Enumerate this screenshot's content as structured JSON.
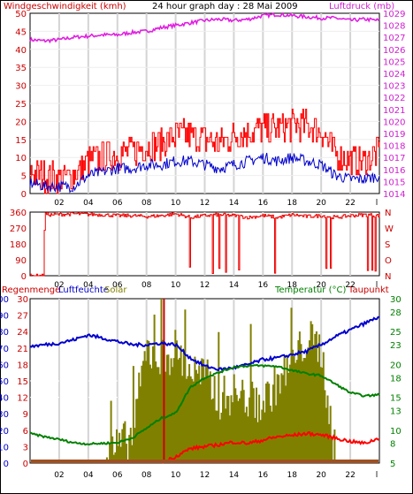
{
  "header": {
    "left_label": "Windgeschwindigkeit (kmh)",
    "title": "24 hour graph day : 28 Mai 2009",
    "right_label": "Luftdruck (mb)"
  },
  "colors": {
    "wind_gust": "#ff0000",
    "wind_avg": "#0000cc",
    "pressure": "#e020e0",
    "direction": "#ee0000",
    "rain": "#cc0000",
    "humidity": "#0000cc",
    "solar": "#808000",
    "temperature": "#008000",
    "dewpoint": "#ff0000",
    "hour_gridline": "#d4d4d4",
    "bottom_bar": "#a05020"
  },
  "legend_mid": {
    "rain": "Regenmenge",
    "humidity": "Luftfeuchte",
    "solar": "Solar",
    "temperature": "Temperatur (°C)",
    "dewpoint": "Taupunkt"
  },
  "chart_data": [
    {
      "type": "line",
      "panel": "wind-pressure",
      "x_ticks": [
        "02",
        "04",
        "06",
        "08",
        "10",
        "12",
        "14",
        "16",
        "18",
        "20",
        "22",
        "l"
      ],
      "left_axis": {
        "label": "Windgeschwindigkeit (kmh)",
        "ticks": [
          0,
          5,
          10,
          15,
          20,
          25,
          30,
          35,
          40,
          45,
          50
        ],
        "ylim": [
          0,
          50
        ]
      },
      "right_axis": {
        "label": "Luftdruck (mb)",
        "ticks": [
          1014,
          1015,
          1016,
          1017,
          1018,
          1019,
          1020,
          1021,
          1022,
          1023,
          1024,
          1025,
          1026,
          1027,
          1028,
          1029
        ],
        "ylim": [
          1014,
          1029
        ]
      },
      "x_hours": [
        0,
        1,
        2,
        3,
        4,
        5,
        6,
        7,
        8,
        9,
        10,
        11,
        12,
        13,
        14,
        15,
        16,
        17,
        18,
        19,
        20,
        21,
        22,
        23,
        24
      ],
      "series": [
        {
          "axis": "right",
          "values": [
            1026.8,
            1026.7,
            1026.8,
            1027.0,
            1027.1,
            1027.2,
            1027.2,
            1027.4,
            1027.5,
            1027.8,
            1028.0,
            1028.2,
            1028.4,
            1028.5,
            1028.4,
            1028.5,
            1028.8,
            1028.9,
            1028.8,
            1028.7,
            1028.6,
            1028.6,
            1028.4,
            1028.5,
            1028.4
          ]
        },
        {
          "axis": "left",
          "values": [
            6,
            5,
            4,
            5,
            9,
            10,
            11,
            12,
            13,
            14,
            16,
            16,
            15,
            14,
            16,
            17,
            18,
            18,
            19,
            19,
            17,
            11,
            9,
            9,
            12
          ]
        },
        {
          "axis": "left",
          "values": [
            3,
            2,
            2,
            2,
            5,
            6,
            7,
            7,
            8,
            8,
            9,
            9,
            8,
            7,
            8,
            9,
            10,
            9,
            10,
            9,
            8,
            5,
            4,
            4,
            5
          ]
        }
      ]
    },
    {
      "type": "line",
      "panel": "wind-direction",
      "x_ticks": [
        "02",
        "04",
        "06",
        "08",
        "10",
        "12",
        "14",
        "16",
        "18",
        "20",
        "22",
        "l"
      ],
      "left_axis": {
        "ticks": [
          0,
          90,
          180,
          270,
          360
        ],
        "ylim": [
          0,
          360
        ]
      },
      "right_axis": {
        "ticks": [
          "N",
          "W",
          "S",
          "O",
          "N"
        ]
      },
      "x_hours": [
        0,
        0.9,
        1.0,
        1.4,
        3,
        5,
        6,
        7,
        8,
        9,
        10,
        11,
        12,
        13,
        14,
        15,
        16,
        17,
        18,
        19,
        20,
        21,
        22,
        23,
        24
      ],
      "series": [
        {
          "values": [
            0,
            0,
            350,
            345,
            350,
            345,
            340,
            340,
            335,
            340,
            350,
            330,
            340,
            345,
            340,
            330,
            340,
            330,
            345,
            335,
            340,
            330,
            340,
            345,
            340
          ]
        }
      ]
    },
    {
      "type": "line",
      "panel": "weather",
      "x_ticks": [
        "02",
        "04",
        "06",
        "08",
        "10",
        "12",
        "14",
        "16",
        "18",
        "20",
        "22",
        "l"
      ],
      "axes": {
        "humidity": {
          "label": "Luftfeuchte",
          "ticks": [
            0,
            10,
            20,
            30,
            40,
            50,
            60,
            70,
            80,
            90,
            100
          ],
          "ylim": [
            0,
            100
          ]
        },
        "solar": {
          "label": "Solar",
          "ticks": [
            0,
            3,
            6,
            9,
            12,
            15,
            18,
            21,
            24,
            27,
            30
          ],
          "ylim": [
            0,
            30
          ]
        },
        "temperature": {
          "label": "Temperatur (°C)",
          "ticks": [
            5,
            8,
            10,
            13,
            15,
            18,
            20,
            23,
            25,
            28,
            30
          ],
          "ylim": [
            5,
            30
          ]
        }
      },
      "x_hours": [
        0,
        1,
        2,
        3,
        4,
        5,
        6,
        7,
        8,
        9,
        10,
        11,
        12,
        13,
        14,
        15,
        16,
        17,
        18,
        19,
        20,
        21,
        22,
        23,
        24
      ],
      "annotations": {
        "marker_hour": 9.2
      },
      "series": [
        {
          "axis": "humidity",
          "values": [
            71,
            72,
            73,
            75,
            78,
            76,
            74,
            72,
            72,
            73,
            72,
            64,
            59,
            57,
            58,
            60,
            63,
            64,
            66,
            68,
            72,
            77,
            81,
            85,
            89
          ]
        },
        {
          "axis": "temperature",
          "values": [
            9.5,
            9.0,
            8.6,
            8.1,
            7.9,
            8.0,
            8.1,
            8.8,
            10.3,
            11.8,
            12.6,
            16.5,
            18.0,
            18.8,
            19.6,
            19.8,
            19.8,
            19.7,
            19.1,
            18.6,
            18.3,
            17.0,
            15.7,
            15.2,
            15.4
          ]
        },
        {
          "axis": "temperature",
          "values": [
            null,
            null,
            null,
            null,
            null,
            null,
            null,
            null,
            null,
            5.0,
            6.0,
            7.2,
            7.5,
            7.8,
            8.2,
            8.0,
            8.5,
            9.0,
            9.2,
            9.5,
            9.3,
            8.8,
            8.3,
            8.0,
            8.8
          ]
        },
        {
          "axis": "solar",
          "type": "area",
          "values": [
            0,
            0,
            0,
            0,
            0,
            0,
            2,
            4,
            20,
            18,
            20,
            16,
            15,
            11,
            12,
            11,
            10,
            14,
            17,
            22,
            20,
            0,
            0,
            0,
            0
          ]
        },
        {
          "axis": "rain",
          "values": [
            0,
            0,
            0,
            0,
            0,
            0,
            0,
            0,
            0,
            0,
            0,
            0,
            0,
            0,
            0,
            0,
            0,
            0,
            0,
            0,
            0,
            0,
            0,
            0,
            0
          ]
        }
      ]
    }
  ]
}
